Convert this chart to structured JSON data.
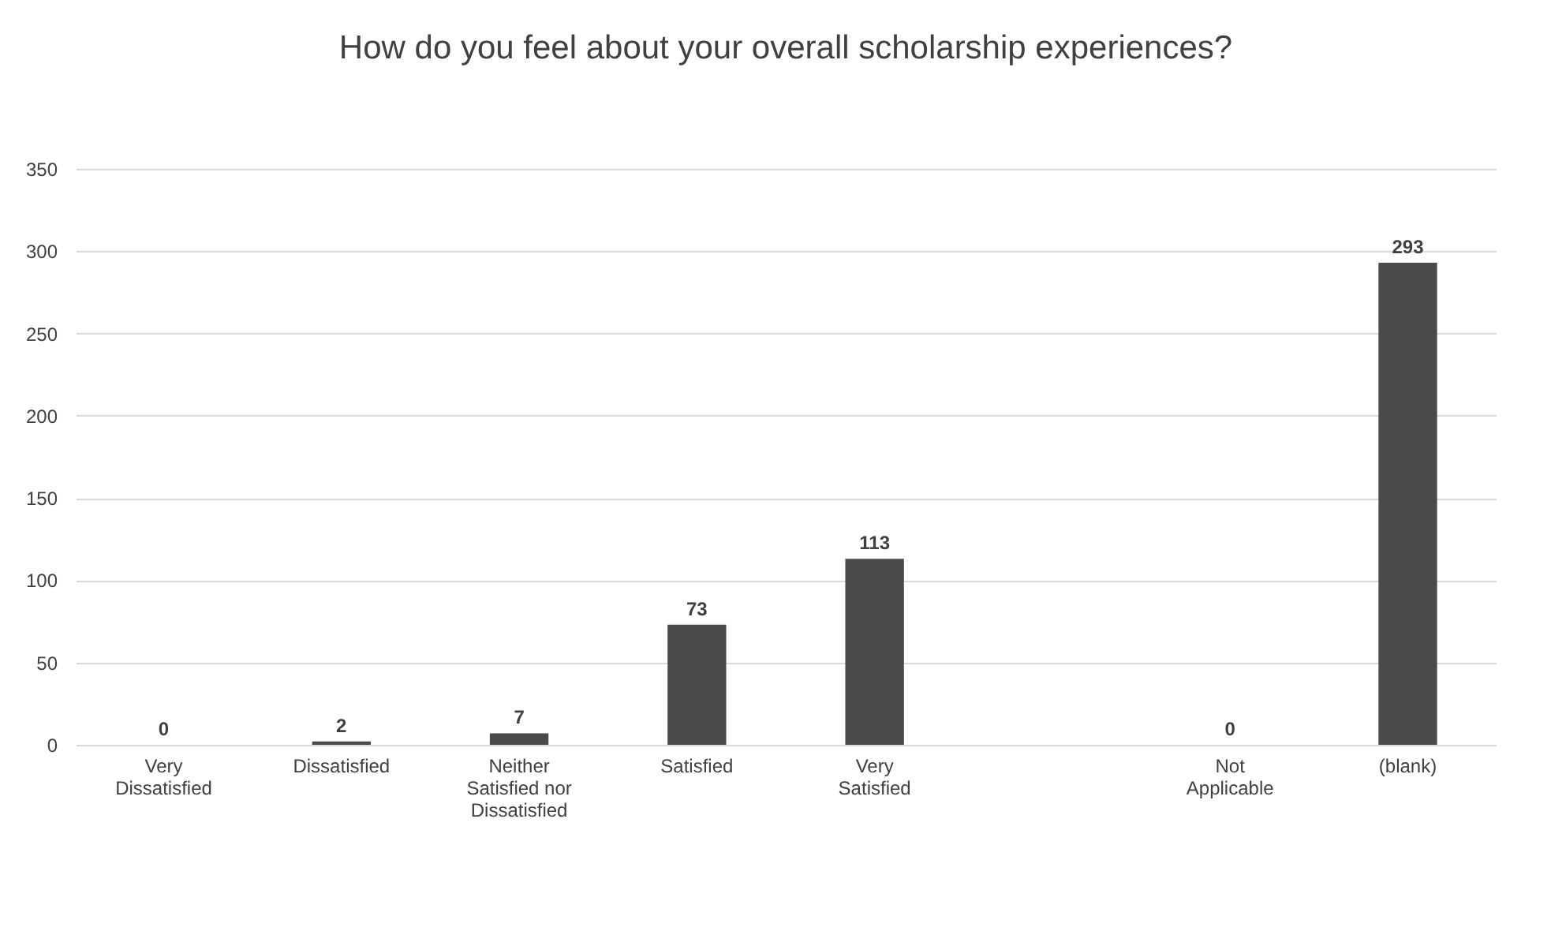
{
  "chart_data": {
    "type": "bar",
    "title": "How do you feel about your overall scholarship experiences?",
    "categories": [
      "Very Dissatisfied",
      "Dissatisfied",
      "Neither Satisfied nor Dissatisfied",
      "Satisfied",
      "Very Satisfied",
      null,
      "Not Applicable",
      "(blank)"
    ],
    "values": [
      0,
      2,
      7,
      73,
      113,
      null,
      0,
      293
    ],
    "color": "#4a4a4a",
    "ylim": [
      0,
      350
    ],
    "yticks": [
      0,
      50,
      100,
      150,
      200,
      250,
      300,
      350
    ],
    "grid": "y",
    "data_labels": true
  }
}
